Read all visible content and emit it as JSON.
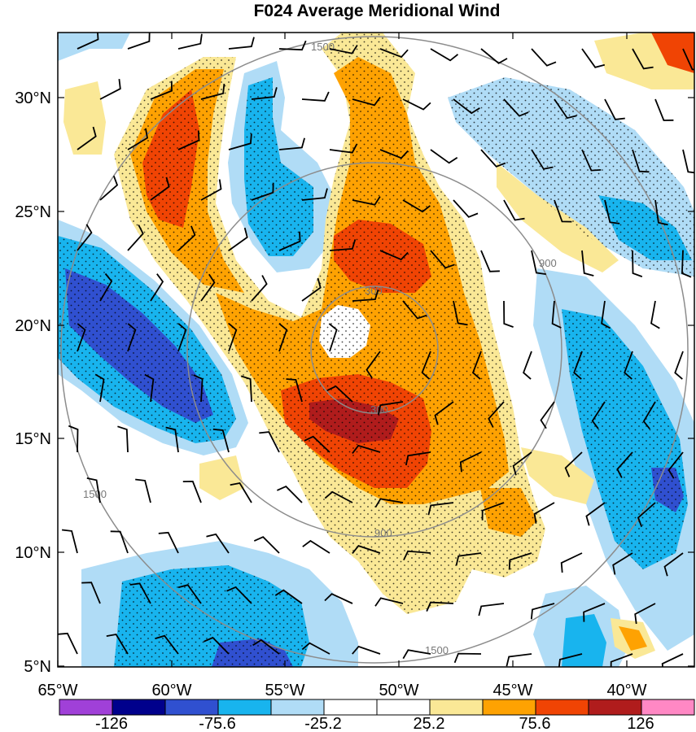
{
  "title": "F024 Average Meridional Wind",
  "x_ticks": [
    "65°W",
    "60°W",
    "55°W",
    "50°W",
    "45°W",
    "40°W"
  ],
  "y_ticks": [
    "30°N",
    "25°N",
    "20°N",
    "15°N",
    "10°N",
    "5°N"
  ],
  "colorbar": {
    "labels": [
      "-126",
      "-75.6",
      "-25.2",
      "25.2",
      "75.6",
      "126"
    ],
    "colors": [
      "#a040d8",
      "#00008c",
      "#3050d0",
      "#18b4ee",
      "#b0dcf6",
      "#ffffff",
      "#ffffff",
      "#fae896",
      "#fea202",
      "#f04404",
      "#b01c1c",
      "#ff88c4"
    ]
  },
  "range_rings": [
    "300",
    "900",
    "1500"
  ],
  "colors": {
    "frame": "#000000",
    "ring": "#8c8c8c",
    "barb": "#000000"
  }
}
